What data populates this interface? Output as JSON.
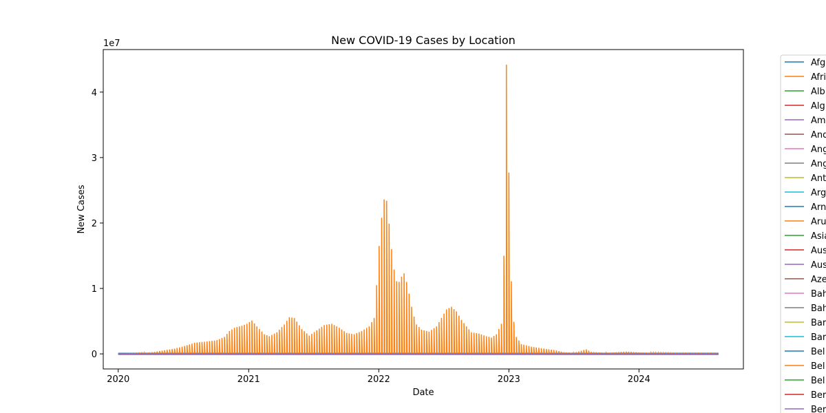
{
  "chart_data": {
    "type": "line",
    "title": "New COVID-19 Cases by Location",
    "xlabel": "Date",
    "ylabel": "New Cases",
    "y_offset_text": "1e7",
    "x_ticks": [
      "2020",
      "2021",
      "2022",
      "2023",
      "2024"
    ],
    "y_ticks": [
      0,
      10000000,
      20000000,
      30000000,
      40000000
    ],
    "y_tick_labels": [
      "0",
      "1",
      "2",
      "3",
      "4"
    ],
    "xlim": [
      "2019-11-20",
      "2024-10-20"
    ],
    "ylim": [
      -2300000,
      46500000
    ],
    "grid": false,
    "legend_position": "outside-right",
    "series": [
      {
        "name": "Afg",
        "color": "#1f77b4"
      },
      {
        "name": "Afri",
        "color": "#ff7f0e"
      },
      {
        "name": "Alb",
        "color": "#2ca02c"
      },
      {
        "name": "Alg",
        "color": "#d62728"
      },
      {
        "name": "Am",
        "color": "#9467bd"
      },
      {
        "name": "And",
        "color": "#8c564b"
      },
      {
        "name": "Ang",
        "color": "#e377c2"
      },
      {
        "name": "Ang",
        "color": "#7f7f7f"
      },
      {
        "name": "Ant",
        "color": "#bcbd22"
      },
      {
        "name": "Arg",
        "color": "#17becf"
      },
      {
        "name": "Arn",
        "color": "#1f77b4"
      },
      {
        "name": "Aru",
        "color": "#ff7f0e"
      },
      {
        "name": "Asia",
        "color": "#2ca02c"
      },
      {
        "name": "Aus",
        "color": "#d62728"
      },
      {
        "name": "Aus",
        "color": "#9467bd"
      },
      {
        "name": "Aze",
        "color": "#8c564b"
      },
      {
        "name": "Bah",
        "color": "#e377c2"
      },
      {
        "name": "Bah",
        "color": "#7f7f7f"
      },
      {
        "name": "Bar",
        "color": "#bcbd22"
      },
      {
        "name": "Bar",
        "color": "#17becf"
      },
      {
        "name": "Bel",
        "color": "#1f77b4"
      },
      {
        "name": "Bel",
        "color": "#ff7f0e"
      },
      {
        "name": "Bel",
        "color": "#2ca02c"
      },
      {
        "name": "Ber",
        "color": "#d62728"
      },
      {
        "name": "Ber",
        "color": "#9467bd"
      }
    ],
    "highlight_series": {
      "name": "Afri",
      "color": "#ff7f0e",
      "comment_values": "approximate weekly spike values read from the plot (date, new cases)",
      "points": [
        [
          "2020-01-05",
          0
        ],
        [
          "2020-03-01",
          100000
        ],
        [
          "2020-04-05",
          250000
        ],
        [
          "2020-05-03",
          500000
        ],
        [
          "2020-06-07",
          800000
        ],
        [
          "2020-07-05",
          1200000
        ],
        [
          "2020-08-02",
          1700000
        ],
        [
          "2020-09-06",
          1900000
        ],
        [
          "2020-10-04",
          2100000
        ],
        [
          "2020-10-25",
          2600000
        ],
        [
          "2020-11-08",
          3500000
        ],
        [
          "2020-11-22",
          4000000
        ],
        [
          "2020-12-13",
          4300000
        ],
        [
          "2020-12-27",
          4600000
        ],
        [
          "2021-01-10",
          5100000
        ],
        [
          "2021-01-24",
          4200000
        ],
        [
          "2021-02-14",
          3000000
        ],
        [
          "2021-02-28",
          2700000
        ],
        [
          "2021-03-21",
          3300000
        ],
        [
          "2021-04-11",
          4500000
        ],
        [
          "2021-04-25",
          5600000
        ],
        [
          "2021-05-09",
          5500000
        ],
        [
          "2021-05-30",
          3800000
        ],
        [
          "2021-06-20",
          2800000
        ],
        [
          "2021-07-11",
          3600000
        ],
        [
          "2021-08-01",
          4400000
        ],
        [
          "2021-08-22",
          4600000
        ],
        [
          "2021-09-12",
          4000000
        ],
        [
          "2021-10-03",
          3200000
        ],
        [
          "2021-10-24",
          3000000
        ],
        [
          "2021-11-14",
          3500000
        ],
        [
          "2021-12-05",
          4200000
        ],
        [
          "2021-12-19",
          5500000
        ],
        [
          "2021-12-26",
          10500000
        ],
        [
          "2022-01-02",
          16500000
        ],
        [
          "2022-01-09",
          20800000
        ],
        [
          "2022-01-16",
          23600000
        ],
        [
          "2022-01-23",
          23400000
        ],
        [
          "2022-01-30",
          19900000
        ],
        [
          "2022-02-06",
          16000000
        ],
        [
          "2022-02-13",
          12900000
        ],
        [
          "2022-02-20",
          11100000
        ],
        [
          "2022-02-27",
          11000000
        ],
        [
          "2022-03-06",
          11800000
        ],
        [
          "2022-03-13",
          12300000
        ],
        [
          "2022-03-20",
          11000000
        ],
        [
          "2022-03-27",
          9200000
        ],
        [
          "2022-04-03",
          7200000
        ],
        [
          "2022-04-10",
          5700000
        ],
        [
          "2022-04-17",
          4500000
        ],
        [
          "2022-05-01",
          3700000
        ],
        [
          "2022-05-22",
          3400000
        ],
        [
          "2022-06-12",
          4200000
        ],
        [
          "2022-06-26",
          5500000
        ],
        [
          "2022-07-10",
          6800000
        ],
        [
          "2022-07-24",
          7200000
        ],
        [
          "2022-08-07",
          6500000
        ],
        [
          "2022-08-21",
          5200000
        ],
        [
          "2022-09-04",
          4200000
        ],
        [
          "2022-09-18",
          3300000
        ],
        [
          "2022-10-09",
          3100000
        ],
        [
          "2022-10-30",
          2700000
        ],
        [
          "2022-11-13",
          2500000
        ],
        [
          "2022-11-27",
          3000000
        ],
        [
          "2022-12-11",
          4600000
        ],
        [
          "2022-12-18",
          15000000
        ],
        [
          "2022-12-25",
          44200000
        ],
        [
          "2023-01-01",
          27700000
        ],
        [
          "2023-01-08",
          11100000
        ],
        [
          "2023-01-15",
          4900000
        ],
        [
          "2023-01-22",
          2600000
        ],
        [
          "2023-02-05",
          1500000
        ],
        [
          "2023-03-05",
          1100000
        ],
        [
          "2023-04-09",
          800000
        ],
        [
          "2023-05-07",
          600000
        ],
        [
          "2023-06-04",
          250000
        ],
        [
          "2023-07-02",
          150000
        ],
        [
          "2023-08-06",
          700000
        ],
        [
          "2023-08-20",
          300000
        ],
        [
          "2023-10-01",
          150000
        ],
        [
          "2023-11-26",
          350000
        ],
        [
          "2024-01-07",
          200000
        ],
        [
          "2024-04-07",
          100000
        ],
        [
          "2024-08-11",
          80000
        ]
      ]
    }
  }
}
